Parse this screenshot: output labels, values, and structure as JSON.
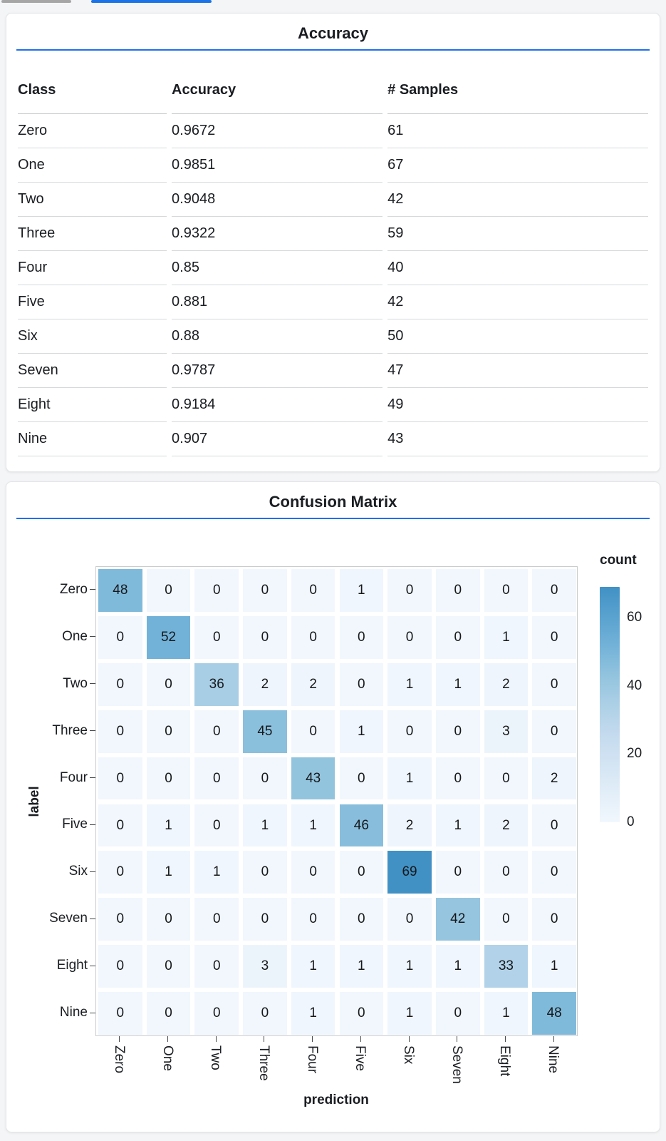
{
  "page": {
    "background": "#f4f5f6"
  },
  "tabs": {
    "inactive_indicator_color": "#a6a6a6",
    "active_indicator_color": "#1a73e8"
  },
  "accuracy_card": {
    "title": "Accuracy",
    "underline_color": "#1f6ff0",
    "table": {
      "columns": [
        "Class",
        "Accuracy",
        "# Samples"
      ],
      "rows": [
        [
          "Zero",
          "0.9672",
          "61"
        ],
        [
          "One",
          "0.9851",
          "67"
        ],
        [
          "Two",
          "0.9048",
          "42"
        ],
        [
          "Three",
          "0.9322",
          "59"
        ],
        [
          "Four",
          "0.85",
          "40"
        ],
        [
          "Five",
          "0.881",
          "42"
        ],
        [
          "Six",
          "0.88",
          "50"
        ],
        [
          "Seven",
          "0.9787",
          "47"
        ],
        [
          "Eight",
          "0.9184",
          "49"
        ],
        [
          "Nine",
          "0.907",
          "43"
        ]
      ]
    }
  },
  "confusion_card": {
    "title": "Confusion Matrix",
    "underline_color": "#1f6ff0"
  },
  "chart_data": {
    "type": "heatmap",
    "title": "Confusion Matrix",
    "xlabel": "prediction",
    "ylabel": "label",
    "legend_title": "count",
    "categories": [
      "Zero",
      "One",
      "Two",
      "Three",
      "Four",
      "Five",
      "Six",
      "Seven",
      "Eight",
      "Nine"
    ],
    "matrix": [
      [
        48,
        0,
        0,
        0,
        0,
        1,
        0,
        0,
        0,
        0
      ],
      [
        0,
        52,
        0,
        0,
        0,
        0,
        0,
        0,
        1,
        0
      ],
      [
        0,
        0,
        36,
        2,
        2,
        0,
        1,
        1,
        2,
        0
      ],
      [
        0,
        0,
        0,
        45,
        0,
        1,
        0,
        0,
        3,
        0
      ],
      [
        0,
        0,
        0,
        0,
        43,
        0,
        1,
        0,
        0,
        2
      ],
      [
        0,
        1,
        0,
        1,
        1,
        46,
        2,
        1,
        2,
        0
      ],
      [
        0,
        1,
        1,
        0,
        0,
        0,
        69,
        0,
        0,
        0
      ],
      [
        0,
        0,
        0,
        0,
        0,
        0,
        0,
        42,
        0,
        0
      ],
      [
        0,
        0,
        0,
        3,
        1,
        1,
        1,
        1,
        33,
        1
      ],
      [
        0,
        0,
        0,
        0,
        1,
        0,
        1,
        0,
        1,
        48
      ]
    ],
    "color_domain": [
      0,
      69
    ],
    "color_scheme": "blues",
    "color_min": "#f1f6fb",
    "color_max": "#4191c5",
    "colorbar_ticks": [
      0,
      20,
      40,
      60
    ],
    "grid": false,
    "legend_position": "right"
  }
}
